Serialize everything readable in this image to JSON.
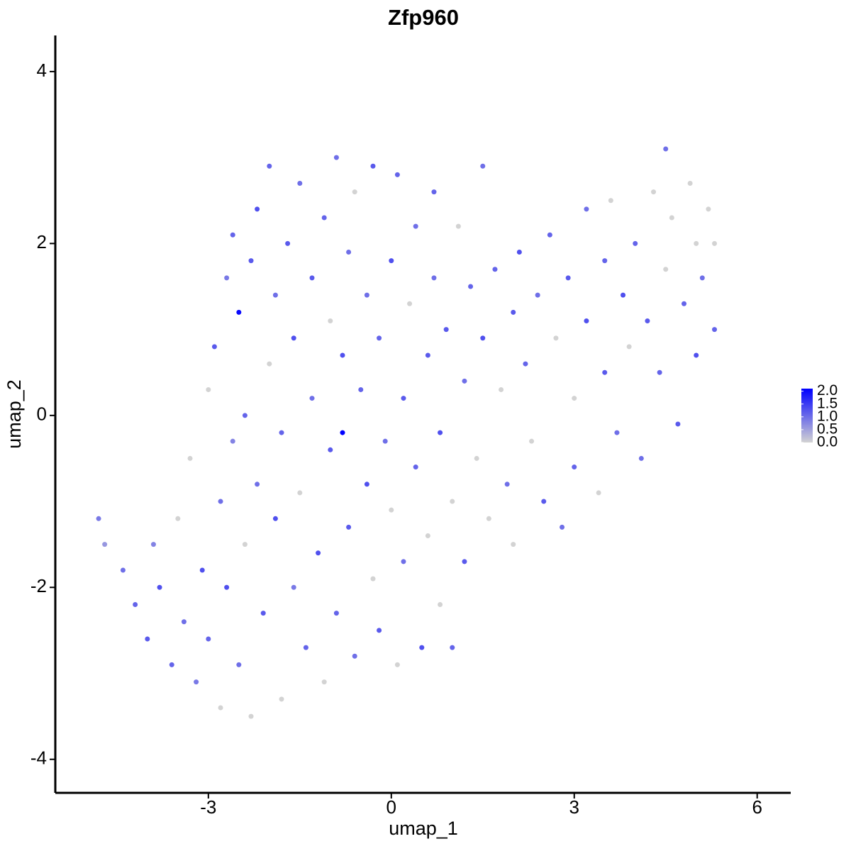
{
  "chart_data": {
    "type": "scatter",
    "title": "Zfp960",
    "xlabel": "umap_1",
    "ylabel": "umap_2",
    "xlim": [
      -5.51,
      6.55
    ],
    "ylim": [
      -4.39,
      4.42
    ],
    "xticks": [
      -3,
      0,
      3,
      6
    ],
    "yticks": [
      -4,
      -2,
      0,
      2,
      4
    ],
    "color_low": "#d3d3d3",
    "color_high": "#0000ff",
    "colorlim": [
      0,
      2.1
    ],
    "colorbar_ticks": [
      {
        "value": 0,
        "label": "0.0"
      },
      {
        "value": 0.5,
        "label": "0.5"
      },
      {
        "value": 1,
        "label": "1.0"
      },
      {
        "value": 1.5,
        "label": "1.5"
      },
      {
        "value": 2,
        "label": "2.0"
      }
    ],
    "x": [
      -4.8,
      -4.7,
      -4.4,
      -4.2,
      -4.0,
      -3.9,
      -3.8,
      -3.6,
      -3.5,
      -3.4,
      -3.3,
      -3.2,
      -3.1,
      -3.0,
      -3.0,
      -2.9,
      -2.8,
      -2.8,
      -2.7,
      -2.7,
      -2.6,
      -2.6,
      -2.5,
      -2.5,
      -2.4,
      -2.4,
      -2.3,
      -2.3,
      -2.2,
      -2.2,
      -2.1,
      -2.0,
      -2.0,
      -1.9,
      -1.9,
      -1.8,
      -1.8,
      -1.7,
      -1.6,
      -1.6,
      -1.5,
      -1.5,
      -1.4,
      -1.3,
      -1.3,
      -1.2,
      -1.1,
      -1.1,
      -1.0,
      -1.0,
      -0.9,
      -0.9,
      -0.8,
      -0.8,
      -0.7,
      -0.7,
      -0.6,
      -0.6,
      -0.5,
      -0.4,
      -0.4,
      -0.3,
      -0.3,
      -0.2,
      -0.2,
      -0.1,
      0.0,
      0.0,
      0.1,
      0.1,
      0.2,
      0.2,
      0.3,
      0.4,
      0.4,
      0.5,
      0.6,
      0.6,
      0.7,
      0.7,
      0.8,
      0.8,
      0.9,
      1.0,
      1.0,
      1.1,
      1.2,
      1.2,
      1.3,
      1.4,
      1.5,
      1.5,
      1.6,
      1.7,
      1.8,
      1.9,
      2.0,
      2.0,
      2.1,
      2.2,
      2.3,
      2.4,
      2.5,
      2.6,
      2.7,
      2.8,
      2.9,
      3.0,
      3.0,
      3.2,
      3.2,
      3.4,
      3.5,
      3.5,
      3.6,
      3.7,
      3.8,
      3.9,
      4.0,
      4.1,
      4.2,
      4.3,
      4.4,
      4.5,
      4.5,
      4.6,
      4.7,
      4.8,
      4.9,
      5.0,
      5.0,
      5.1,
      5.2,
      5.3,
      5.3
    ],
    "y": [
      -1.2,
      -1.5,
      -1.8,
      -2.2,
      -2.6,
      -1.5,
      -2.0,
      -2.9,
      -1.2,
      -2.4,
      -0.5,
      -3.1,
      -1.8,
      0.3,
      -2.6,
      0.8,
      -1.0,
      -3.4,
      1.6,
      -2.0,
      2.1,
      -0.3,
      1.2,
      -2.9,
      0.0,
      -1.5,
      1.8,
      -3.5,
      2.4,
      -0.8,
      -2.3,
      0.6,
      2.9,
      -1.2,
      1.4,
      -3.3,
      -0.2,
      2.0,
      -2.0,
      0.9,
      2.7,
      -0.9,
      -2.7,
      1.6,
      0.2,
      -1.6,
      2.3,
      -3.1,
      -0.4,
      1.1,
      3.0,
      -2.3,
      -0.2,
      0.7,
      1.9,
      -1.3,
      2.6,
      -2.8,
      0.3,
      -0.8,
      1.4,
      2.9,
      -1.9,
      0.9,
      -2.5,
      -0.3,
      1.8,
      -1.1,
      2.8,
      -2.9,
      0.2,
      -1.7,
      1.3,
      -0.6,
      2.2,
      -2.7,
      0.7,
      -1.4,
      1.6,
      2.6,
      -0.2,
      -2.2,
      1.0,
      -1.0,
      -2.7,
      2.2,
      0.4,
      -1.7,
      1.5,
      -0.5,
      0.9,
      2.9,
      -1.2,
      1.7,
      0.3,
      -0.8,
      1.2,
      -1.5,
      1.9,
      0.6,
      -0.3,
      1.4,
      -1.0,
      2.1,
      0.9,
      -1.3,
      1.6,
      0.2,
      -0.6,
      2.4,
      1.1,
      -0.9,
      1.8,
      0.5,
      2.5,
      -0.2,
      1.4,
      0.8,
      2.0,
      -0.5,
      1.1,
      2.6,
      0.5,
      3.1,
      1.7,
      2.3,
      -0.1,
      1.3,
      2.7,
      0.7,
      2.0,
      1.6,
      2.4,
      1.0,
      2.0
    ],
    "values": [
      0.9,
      0.6,
      1.0,
      1.1,
      1.2,
      0.8,
      1.3,
      1.1,
      0,
      1.0,
      0,
      0.9,
      1.3,
      0,
      1.1,
      1.2,
      1.0,
      0,
      0.9,
      1.3,
      1.1,
      0.8,
      2.0,
      1.0,
      1.1,
      0,
      1.2,
      0,
      1.3,
      1.0,
      1.2,
      0,
      1.1,
      1.3,
      1.0,
      0,
      1.1,
      1.2,
      0.9,
      1.3,
      1.0,
      0,
      1.1,
      1.2,
      1.0,
      1.3,
      1.1,
      0,
      1.2,
      0,
      1.0,
      1.1,
      2.1,
      1.3,
      1.0,
      1.2,
      0,
      1.0,
      1.1,
      1.3,
      1.0,
      1.2,
      0,
      1.1,
      1.2,
      1.0,
      1.3,
      0,
      1.1,
      0,
      1.2,
      1.0,
      0,
      1.1,
      1.0,
      1.3,
      1.2,
      0,
      1.0,
      1.1,
      1.3,
      0,
      1.2,
      0,
      1.1,
      0,
      1.0,
      1.2,
      1.1,
      0,
      1.3,
      1.0,
      0,
      1.1,
      0,
      1.0,
      1.2,
      0,
      1.3,
      1.1,
      0,
      1.0,
      1.2,
      1.1,
      0,
      1.0,
      1.2,
      0,
      1.1,
      1.0,
      1.3,
      0,
      1.1,
      1.2,
      0,
      1.0,
      1.3,
      0,
      1.1,
      1.0,
      1.2,
      0,
      1.1,
      1.0,
      0,
      0,
      1.2,
      1.1,
      0,
      1.3,
      0,
      1.0,
      0,
      1.1,
      0
    ]
  }
}
